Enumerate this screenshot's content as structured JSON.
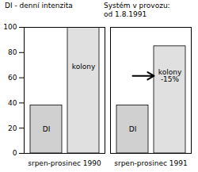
{
  "chart_data": {
    "type": "bar",
    "title": "DI - denní intenzita",
    "annotations": [
      {
        "text": "Systém v provozu:\nod 1.8.1991"
      }
    ],
    "categories": [
      "srpen-prosinec 1990",
      "srpen-prosinec 1991"
    ],
    "series": [
      {
        "name": "DI",
        "color": "#d0d0d0",
        "values": [
          38,
          38
        ],
        "labels": [
          "DI",
          "DI"
        ]
      },
      {
        "name": "kolony",
        "color": "#e0e0e0",
        "values": [
          100,
          85
        ],
        "labels": [
          "kolony",
          "kolony\n-15%"
        ]
      }
    ],
    "ylim": [
      0,
      100
    ],
    "yticks": [
      0,
      20,
      40,
      60,
      80,
      100
    ],
    "grid": false
  }
}
